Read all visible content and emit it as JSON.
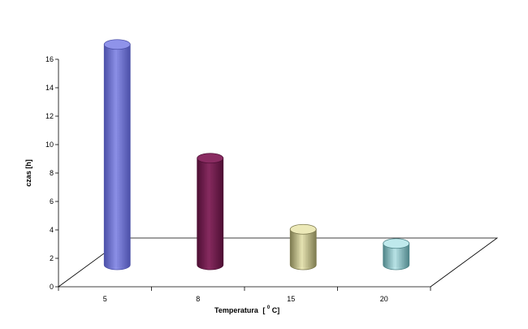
{
  "chart_data": {
    "type": "bar",
    "style": "3d-cylinder",
    "categories": [
      "5",
      "8",
      "15",
      "20"
    ],
    "values": [
      15.5,
      7.5,
      2.5,
      1.5
    ],
    "ylabel": "czas [h]",
    "xlabel_main": "Temperatura",
    "xlabel_bracket_open": "[",
    "xlabel_degree": "0",
    "xlabel_unit": "C]",
    "ylim": [
      0,
      16
    ],
    "yticks": [
      "0",
      "2",
      "4",
      "6",
      "8",
      "10",
      "12",
      "14",
      "16"
    ],
    "grid": false,
    "legend": "none",
    "colors": [
      "#8f93ea",
      "#8a2c62",
      "#ece9b8",
      "#bfe9ec"
    ],
    "edge_colors": [
      "#4c50a8",
      "#4e0f34",
      "#7d7a4f",
      "#4f8488"
    ]
  }
}
